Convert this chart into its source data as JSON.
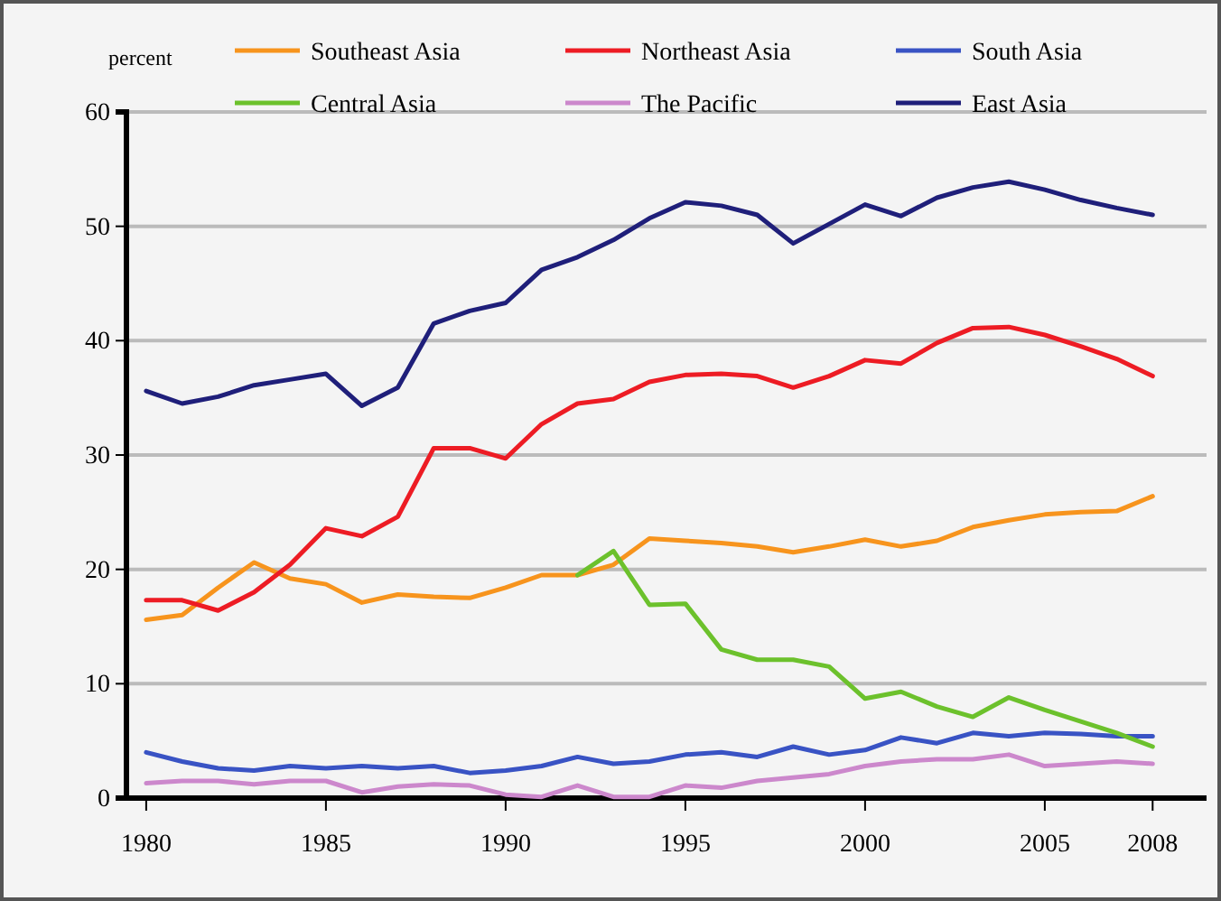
{
  "chart_data": {
    "type": "line",
    "ylabel": "percent",
    "x": [
      1980,
      1981,
      1982,
      1983,
      1984,
      1985,
      1986,
      1987,
      1988,
      1989,
      1990,
      1991,
      1992,
      1993,
      1994,
      1995,
      1996,
      1997,
      1998,
      1999,
      2000,
      2001,
      2002,
      2003,
      2004,
      2005,
      2006,
      2007,
      2008
    ],
    "xlim": [
      1979.45,
      2009.5
    ],
    "xticks": [
      1980,
      1985,
      1990,
      1995,
      2000,
      2005,
      2008
    ],
    "ylim": [
      0,
      60
    ],
    "yticks": [
      0,
      10,
      20,
      30,
      40,
      50,
      60
    ],
    "grid": "y",
    "legend": "top",
    "line_style": "solid",
    "marker": "none",
    "series": [
      {
        "name": "Southeast Asia",
        "color": "#f7941d",
        "values": [
          15.6,
          16.0,
          18.4,
          20.6,
          19.2,
          18.7,
          17.1,
          17.8,
          17.6,
          17.5,
          18.4,
          19.5,
          19.5,
          20.4,
          22.7,
          22.5,
          22.3,
          22.0,
          21.5,
          22.0,
          22.6,
          22.0,
          22.5,
          23.7,
          24.3,
          24.8,
          25.0,
          25.1,
          26.4
        ]
      },
      {
        "name": "Northeast Asia",
        "color": "#ed1c24",
        "values": [
          17.3,
          17.3,
          16.4,
          18.0,
          20.4,
          23.6,
          22.9,
          24.6,
          30.6,
          30.6,
          29.7,
          32.7,
          34.5,
          34.9,
          36.4,
          37.0,
          37.1,
          36.9,
          35.9,
          36.9,
          38.3,
          38.0,
          39.8,
          41.1,
          41.2,
          40.5,
          39.5,
          38.4,
          36.9
        ]
      },
      {
        "name": "South Asia",
        "color": "#3953c4",
        "values": [
          4.0,
          3.2,
          2.6,
          2.4,
          2.8,
          2.6,
          2.8,
          2.6,
          2.8,
          2.2,
          2.4,
          2.8,
          3.6,
          3.0,
          3.2,
          3.8,
          4.0,
          3.6,
          4.5,
          3.8,
          4.2,
          5.3,
          4.8,
          5.7,
          5.4,
          5.7,
          5.6,
          5.4,
          5.4
        ]
      },
      {
        "name": "Central Asia",
        "color": "#6cc12c",
        "values": [
          null,
          null,
          null,
          null,
          null,
          null,
          null,
          null,
          null,
          null,
          null,
          null,
          19.5,
          21.6,
          16.9,
          17.0,
          13.0,
          12.1,
          12.1,
          11.5,
          8.7,
          9.3,
          8.0,
          7.1,
          8.8,
          7.7,
          6.7,
          5.7,
          4.5
        ]
      },
      {
        "name": "The Pacific",
        "color": "#cc88cc",
        "values": [
          1.3,
          1.5,
          1.5,
          1.2,
          1.5,
          1.5,
          0.5,
          1.0,
          1.2,
          1.1,
          0.3,
          0.1,
          1.1,
          0.1,
          0.1,
          1.1,
          0.9,
          1.5,
          1.8,
          2.1,
          2.8,
          3.2,
          3.4,
          3.4,
          3.8,
          2.8,
          3.0,
          3.2,
          3.0
        ]
      },
      {
        "name": "East Asia",
        "color": "#1f1f7a",
        "values": [
          35.6,
          34.5,
          35.1,
          36.1,
          36.6,
          37.1,
          34.3,
          35.9,
          41.5,
          42.6,
          43.3,
          46.2,
          47.3,
          48.8,
          50.7,
          52.1,
          51.8,
          51.0,
          48.5,
          50.2,
          51.9,
          50.9,
          52.5,
          53.4,
          53.9,
          53.2,
          52.3,
          51.6,
          51.0
        ]
      }
    ]
  }
}
